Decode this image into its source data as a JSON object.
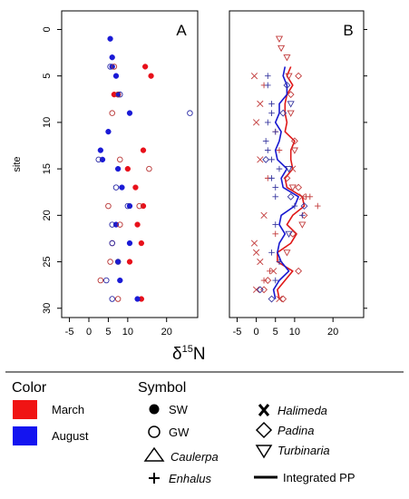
{
  "chart_data": [
    {
      "panel": "A",
      "type": "scatter",
      "xlabel": "δ15N",
      "ylabel": "site",
      "xlim": [
        -7,
        28
      ],
      "ylim": [
        31,
        -2
      ],
      "y_reversed": true,
      "xticks": [
        -5,
        0,
        5,
        10,
        20
      ],
      "yticks": [
        0,
        5,
        10,
        15,
        20,
        25,
        30
      ],
      "series": [
        {
          "name": "March SW",
          "color": "#e8101a",
          "marker": "filled-circle",
          "points": [
            [
              14.5,
              4
            ],
            [
              16,
              5
            ],
            [
              6.5,
              7
            ],
            [
              14,
              13
            ],
            [
              10,
              15
            ],
            [
              12,
              17
            ],
            [
              14,
              19
            ],
            [
              12.5,
              21
            ],
            [
              13.5,
              23
            ],
            [
              10.5,
              25
            ],
            [
              13.5,
              29
            ]
          ]
        },
        {
          "name": "August SW",
          "color": "#1a1ad6",
          "marker": "filled-circle",
          "points": [
            [
              5.5,
              1
            ],
            [
              6,
              3
            ],
            [
              6,
              4
            ],
            [
              7,
              5
            ],
            [
              7.5,
              7
            ],
            [
              10.5,
              9
            ],
            [
              5,
              11
            ],
            [
              3,
              13
            ],
            [
              3.5,
              14
            ],
            [
              7.5,
              15
            ],
            [
              8.5,
              17
            ],
            [
              10.5,
              19
            ],
            [
              7,
              21
            ],
            [
              10.5,
              23
            ],
            [
              7.5,
              25
            ],
            [
              8,
              27
            ],
            [
              12.5,
              29
            ]
          ]
        },
        {
          "name": "March GW",
          "color": "#b73232",
          "marker": "open-circle",
          "points": [
            [
              6.5,
              4
            ],
            [
              7.5,
              7
            ],
            [
              6,
              9
            ],
            [
              8,
              14
            ],
            [
              15.5,
              15
            ],
            [
              5,
              19
            ],
            [
              13,
              19
            ],
            [
              8,
              21
            ],
            [
              6,
              23
            ],
            [
              5.5,
              25
            ],
            [
              3,
              27
            ],
            [
              7.5,
              29
            ]
          ]
        },
        {
          "name": "August GW",
          "color": "#2a2aa6",
          "marker": "open-circle",
          "points": [
            [
              5.5,
              4
            ],
            [
              8,
              7
            ],
            [
              26,
              9
            ],
            [
              2.5,
              14
            ],
            [
              7,
              17
            ],
            [
              10,
              19
            ],
            [
              6,
              21
            ],
            [
              6,
              23
            ],
            [
              7.5,
              25
            ],
            [
              4.5,
              27
            ],
            [
              6,
              29
            ]
          ]
        }
      ]
    },
    {
      "panel": "B",
      "type": "scatter+line",
      "xlabel": "δ15N",
      "xlim": [
        -7,
        28
      ],
      "ylim": [
        31,
        -2
      ],
      "xticks": [
        -5,
        0,
        5,
        10,
        20
      ],
      "yticks": [
        0,
        5,
        10,
        15,
        20,
        25,
        30
      ],
      "markers": [
        {
          "color": "#c23b3b",
          "marker": "x",
          "points": [
            [
              -0.5,
              5
            ],
            [
              1,
              8
            ],
            [
              0,
              10
            ],
            [
              1,
              14
            ],
            [
              9.5,
              15
            ],
            [
              12,
              18
            ],
            [
              2,
              20
            ],
            [
              -0.5,
              23
            ],
            [
              0,
              24
            ],
            [
              1,
              25
            ],
            [
              4.5,
              26
            ],
            [
              0,
              28
            ],
            [
              6,
              29
            ]
          ]
        },
        {
          "color": "#c23b3b",
          "marker": "diamond",
          "points": [
            [
              11,
              5
            ],
            [
              9,
              7
            ],
            [
              10,
              12
            ],
            [
              8,
              16
            ],
            [
              11,
              17
            ],
            [
              12.5,
              20
            ],
            [
              9.5,
              22
            ],
            [
              11,
              26
            ],
            [
              3,
              27
            ],
            [
              2,
              28
            ],
            [
              7,
              29
            ]
          ]
        },
        {
          "color": "#3838a0",
          "marker": "diamond",
          "points": [
            [
              8,
              6
            ],
            [
              7,
              9
            ],
            [
              2.5,
              14
            ],
            [
              9,
              18
            ],
            [
              12.5,
              19
            ],
            [
              1,
              28
            ],
            [
              4,
              29
            ]
          ]
        },
        {
          "color": "#c23b3b",
          "marker": "triangle-down",
          "points": [
            [
              6,
              1
            ],
            [
              6.5,
              2
            ],
            [
              8,
              3
            ],
            [
              8.5,
              5
            ],
            [
              9,
              9
            ],
            [
              10,
              13
            ],
            [
              9.5,
              17
            ],
            [
              12,
              21
            ],
            [
              8,
              24
            ]
          ]
        },
        {
          "color": "#3838a0",
          "marker": "triangle-down",
          "points": [
            [
              9,
              8
            ],
            [
              8.5,
              15
            ],
            [
              8.5,
              22
            ]
          ]
        },
        {
          "color": "#c23b3b",
          "marker": "plus",
          "points": [
            [
              2,
              6
            ],
            [
              5,
              11
            ],
            [
              6,
              13
            ],
            [
              3,
              16
            ],
            [
              13,
              18
            ],
            [
              14,
              18
            ],
            [
              16,
              19
            ],
            [
              5,
              22
            ],
            [
              3.5,
              26
            ],
            [
              2,
              27
            ]
          ]
        },
        {
          "color": "#3838a0",
          "marker": "plus",
          "points": [
            [
              3,
              5
            ],
            [
              3,
              6
            ],
            [
              4,
              8
            ],
            [
              4,
              9
            ],
            [
              3,
              10
            ],
            [
              5,
              11
            ],
            [
              2.5,
              12
            ],
            [
              3,
              13
            ],
            [
              4,
              14
            ],
            [
              6,
              15
            ],
            [
              4,
              16
            ],
            [
              5,
              17
            ],
            [
              5,
              18
            ],
            [
              10,
              19
            ],
            [
              12,
              20
            ],
            [
              5,
              21
            ],
            [
              4,
              24
            ],
            [
              6,
              25
            ],
            [
              5,
              27
            ]
          ]
        }
      ],
      "lines": [
        {
          "color": "#e01818",
          "name": "March Integrated PP",
          "points": [
            [
              9,
              4
            ],
            [
              8,
              5
            ],
            [
              9.5,
              6
            ],
            [
              8,
              7
            ],
            [
              7.5,
              8
            ],
            [
              7.5,
              9
            ],
            [
              8,
              10
            ],
            [
              7.5,
              11
            ],
            [
              10,
              12
            ],
            [
              9,
              13
            ],
            [
              9,
              14
            ],
            [
              9.5,
              15
            ],
            [
              7.5,
              16
            ],
            [
              8,
              17
            ],
            [
              12,
              18
            ],
            [
              12.5,
              19
            ],
            [
              9.5,
              20
            ],
            [
              8,
              21
            ],
            [
              10.5,
              22
            ],
            [
              9,
              23
            ],
            [
              5.5,
              24
            ],
            [
              5.5,
              25
            ],
            [
              9.5,
              26
            ],
            [
              7.5,
              27
            ],
            [
              5.5,
              28
            ],
            [
              6,
              29
            ]
          ]
        },
        {
          "color": "#1818d0",
          "name": "August Integrated PP",
          "points": [
            [
              7.5,
              4
            ],
            [
              7,
              5
            ],
            [
              8,
              6
            ],
            [
              8,
              7
            ],
            [
              6,
              8
            ],
            [
              6,
              9
            ],
            [
              5,
              10
            ],
            [
              6.5,
              11
            ],
            [
              6,
              12
            ],
            [
              5,
              13
            ],
            [
              5.5,
              14
            ],
            [
              8,
              15
            ],
            [
              6.5,
              16
            ],
            [
              7,
              17
            ],
            [
              11,
              18
            ],
            [
              10,
              19
            ],
            [
              6.5,
              20
            ],
            [
              6,
              21
            ],
            [
              7.5,
              22
            ],
            [
              6,
              23
            ],
            [
              5.5,
              24
            ],
            [
              6.5,
              25
            ],
            [
              8.5,
              26
            ],
            [
              6,
              27
            ],
            [
              4.5,
              28
            ],
            [
              5,
              29
            ]
          ]
        }
      ]
    }
  ],
  "panel_labels": {
    "a": "A",
    "b": "B"
  },
  "axis": {
    "y_title": "site",
    "x_title_main": "δ",
    "x_title_sup": "15",
    "x_title_tail": "N",
    "x_tick_labels": [
      "-5",
      "0",
      "5",
      "10",
      "20"
    ],
    "y_tick_labels": [
      "0",
      "5",
      "10",
      "15",
      "20",
      "25",
      "30"
    ]
  },
  "legend": {
    "color_title": "Color",
    "color_items": [
      {
        "label": "March",
        "color": "#f01414"
      },
      {
        "label": "August",
        "color": "#1414f0"
      }
    ],
    "symbol_title": "Symbol",
    "symbol_items": [
      {
        "label": "SW",
        "icon": "filled-circle"
      },
      {
        "label": "GW",
        "icon": "open-circle"
      },
      {
        "label": "Caulerpa",
        "icon": "open-triangle-up",
        "italic": true
      },
      {
        "label": "Enhalus",
        "icon": "plus",
        "italic": true
      }
    ],
    "symbol_items_right": [
      {
        "label": "Halimeda",
        "icon": "bold-x",
        "italic": true
      },
      {
        "label": "Padina",
        "icon": "open-diamond",
        "italic": true
      },
      {
        "label": "Turbinaria",
        "icon": "open-triangle-down",
        "italic": true
      },
      {
        "label": "Integrated PP",
        "icon": "line",
        "italic": false
      }
    ]
  }
}
